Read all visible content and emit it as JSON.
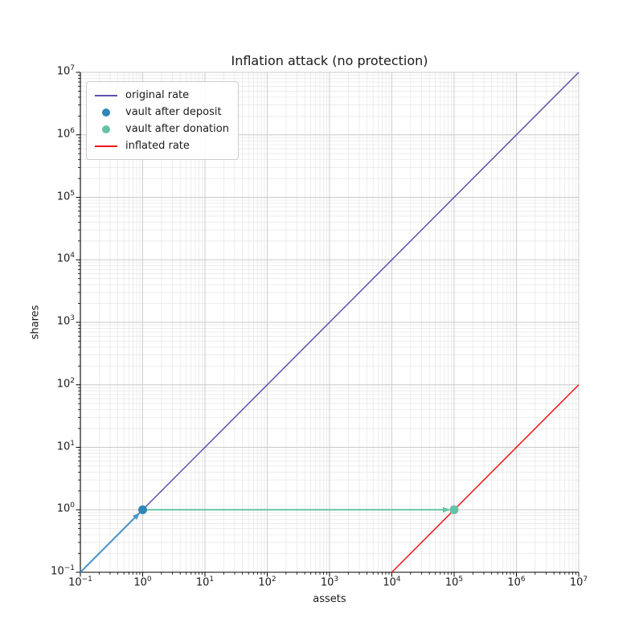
{
  "figure": {
    "title": "Inflation attack (no protection)",
    "xlabel": "assets",
    "ylabel": "shares",
    "background": "#ffffff",
    "text_color": "#1a1a1a",
    "spine_color": "#000000",
    "grid_major_color": "#c9c9c9",
    "grid_minor_color": "#e5e5e5"
  },
  "chart_data": {
    "type": "line",
    "title": "Inflation attack (no protection)",
    "xlabel": "assets",
    "ylabel": "shares",
    "x_scale": "log",
    "y_scale": "log",
    "xlim": [
      0.1,
      10000000
    ],
    "ylim": [
      0.1,
      10000000
    ],
    "x_tick_exponents": [
      -1,
      0,
      1,
      2,
      3,
      4,
      5,
      6,
      7
    ],
    "y_tick_exponents": [
      -1,
      0,
      1,
      2,
      3,
      4,
      5,
      6,
      7
    ],
    "grid": "major+minor",
    "legend_position": "upper left",
    "series": [
      {
        "name": "original rate",
        "type": "line",
        "color": "#5e52ab",
        "width": 1.5,
        "points": [
          [
            0.1,
            0.1
          ],
          [
            10000000,
            10000000
          ]
        ]
      },
      {
        "name": "vault after deposit",
        "type": "scatter",
        "color": "#2f86b8",
        "size": 11,
        "points": [
          [
            1,
            1
          ]
        ]
      },
      {
        "name": "vault after donation",
        "type": "scatter",
        "color": "#66c2a5",
        "size": 11,
        "points": [
          [
            100000,
            1
          ]
        ]
      },
      {
        "name": "inflated rate",
        "type": "line",
        "color": "#ed1515",
        "width": 1.5,
        "points": [
          [
            10000,
            0.1
          ],
          [
            10000000,
            100
          ]
        ]
      }
    ],
    "annotations": [
      {
        "name": "deposit-arrow",
        "type": "arrow",
        "color": "#4b94c6",
        "width": 2,
        "from": [
          0.1,
          0.1
        ],
        "to": [
          1,
          1
        ]
      },
      {
        "name": "donation-arrow",
        "type": "arrow",
        "color": "#66c2a5",
        "width": 2,
        "from": [
          1,
          1
        ],
        "to": [
          100000,
          1
        ]
      }
    ],
    "legend_entries": [
      {
        "label": "original rate",
        "marker": "line",
        "color": "#5e52ab"
      },
      {
        "label": "vault after deposit",
        "marker": "dot",
        "color": "#2f86b8"
      },
      {
        "label": "vault after donation",
        "marker": "dot",
        "color": "#66c2a5"
      },
      {
        "label": "inflated rate",
        "marker": "line",
        "color": "#ed1515"
      }
    ]
  }
}
